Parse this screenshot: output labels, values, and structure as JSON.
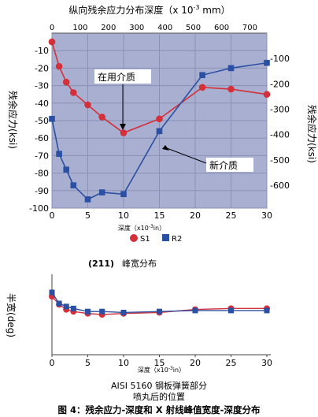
{
  "top_chart": {
    "title": "纵向残余应力分布深度（x 10",
    "title_exp": "-3",
    "title_unit": " mm）",
    "y_left_label": "残余应力(ksi)",
    "y_right_label": "残余应力(ksi)",
    "x_label_text": "深度（x10",
    "x_label_exp": "-3",
    "x_label_unit": "in）",
    "legend": [
      "S1",
      "R2"
    ],
    "annotations": [
      "在用介质",
      "新介质"
    ]
  },
  "bottom_chart": {
    "title": "(211)",
    "subtitle": "峰宽分布",
    "y_label": "半宽(deg)",
    "x_label_text": "深度（x10",
    "x_label_exp": "-3",
    "x_label_unit": "in）"
  },
  "captions": {
    "line1": "AISI 5160 钢板弹簧部分",
    "line2": "喷丸后的位置",
    "figure": "图 4：残余应力-深度和 X 射线峰值宽度-深度分布"
  },
  "colors": {
    "plot_bg": "#a8afd0",
    "red_series": "#d4303a",
    "blue_series": "#2b4fa3",
    "grid": "#8a90b6"
  },
  "chart_data": [
    {
      "type": "line",
      "title": "纵向残余应力分布深度（x 10-3 mm）",
      "xlabel": "深度（x10-3 in）",
      "ylabel": "残余应力(ksi)",
      "xlim": [
        0,
        30
      ],
      "ylim": [
        -100,
        0
      ],
      "x_ticks": [
        0,
        5,
        10,
        15,
        20,
        25,
        30
      ],
      "y_ticks": [
        -10,
        -20,
        -30,
        -40,
        -50,
        -60,
        -70,
        -80,
        -90,
        -100
      ],
      "secondary_x": {
        "ticks": [
          0,
          100,
          200,
          300,
          400,
          500,
          600,
          700
        ]
      },
      "secondary_y": {
        "ticks": [
          -100,
          -200,
          -300,
          -400,
          -500,
          -600
        ]
      },
      "grid": true,
      "legend_position": "bottom",
      "series": [
        {
          "name": "S1",
          "color": "#d4303a",
          "marker": "circle",
          "x": [
            0,
            1,
            2,
            3,
            5,
            7,
            10,
            15,
            21,
            25,
            30
          ],
          "y": [
            -5,
            -19,
            -28,
            -34,
            -41,
            -48,
            -57,
            -49,
            -31,
            -32,
            -35
          ]
        },
        {
          "name": "R2",
          "color": "#2b4fa3",
          "marker": "square",
          "x": [
            0,
            1,
            2,
            3,
            5,
            7,
            10,
            15,
            21,
            25,
            30
          ],
          "y": [
            -49,
            -69,
            -78,
            -87,
            -95,
            -91,
            -92,
            -56,
            -24,
            -20,
            -17
          ]
        }
      ]
    },
    {
      "type": "line",
      "title": "(211) 峰宽分布",
      "xlabel": "深度（x10-3 in）",
      "ylabel": "半宽(deg)",
      "xlim": [
        0,
        30
      ],
      "ylim": [
        0,
        4
      ],
      "x_ticks": [
        0,
        5,
        10,
        15,
        20,
        25,
        30
      ],
      "y_ticks": [
        0,
        1,
        2,
        3,
        4
      ],
      "grid": false,
      "series": [
        {
          "name": "S1",
          "color": "#d4303a",
          "marker": "circle",
          "x": [
            0,
            1,
            2,
            3,
            5,
            7,
            10,
            15,
            20,
            25,
            30
          ],
          "y": [
            2.9,
            2.5,
            2.25,
            2.15,
            2.05,
            2.0,
            2.05,
            2.1,
            2.25,
            2.3,
            2.3
          ]
        },
        {
          "name": "R2",
          "color": "#2b4fa3",
          "marker": "square",
          "x": [
            0,
            1,
            2,
            3,
            5,
            7,
            10,
            15,
            20,
            25,
            30
          ],
          "y": [
            3.1,
            2.55,
            2.4,
            2.3,
            2.15,
            2.15,
            2.1,
            2.15,
            2.2,
            2.2,
            2.2
          ]
        }
      ]
    }
  ]
}
